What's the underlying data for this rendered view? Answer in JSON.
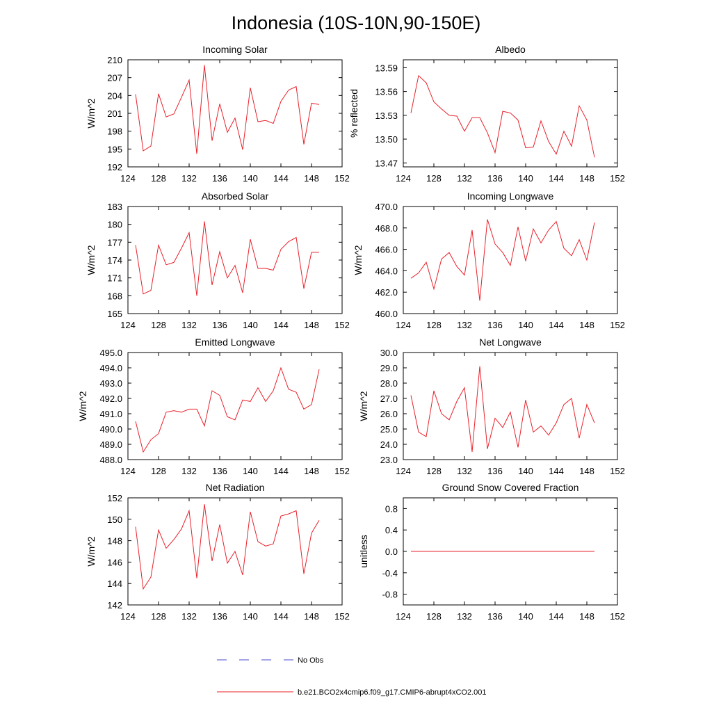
{
  "figure": {
    "title": "Indonesia (10S-10N,90-150E)",
    "legend": [
      {
        "label": "No Obs",
        "color": "#4a4ad0",
        "style": "dashed"
      },
      {
        "label": "b.e21.BCO2x4cmip6.f09_g17.CMIP6-abrupt4xCO2.001",
        "color": "#e8202a",
        "style": "solid"
      }
    ]
  },
  "chart_data": [
    {
      "type": "line",
      "title": "Incoming Solar",
      "xlabel": "",
      "ylabel": "W/m^2",
      "xlim": [
        124,
        152
      ],
      "ylim": [
        192,
        210
      ],
      "xticks": [
        124,
        128,
        132,
        136,
        140,
        144,
        148,
        152
      ],
      "xtick_labels": [
        "124",
        "128",
        "132",
        "136",
        "140",
        "144",
        "148",
        "152"
      ],
      "yticks": [
        192,
        195,
        198,
        201,
        204,
        207,
        210
      ],
      "ytick_labels": [
        "192",
        "195",
        "198",
        "201",
        "204",
        "207",
        "210"
      ],
      "series": [
        {
          "name": "b.e21.BCO2x4cmip6.f09_g17.CMIP6-abrupt4xCO2.001",
          "color": "#e8202a",
          "x": [
            125,
            126,
            127,
            128,
            129,
            130,
            131,
            132,
            133,
            134,
            135,
            136,
            137,
            138,
            139,
            140,
            141,
            142,
            143,
            144,
            145,
            146,
            147,
            148,
            149
          ],
          "y": [
            204.2,
            194.7,
            195.5,
            204.3,
            200.4,
            200.9,
            203.7,
            206.6,
            194.2,
            209.1,
            196.4,
            202.6,
            197.8,
            200.2,
            194.9,
            205.3,
            199.6,
            199.8,
            199.3,
            203.0,
            204.9,
            205.5,
            195.8,
            202.7,
            202.5
          ]
        }
      ]
    },
    {
      "type": "line",
      "title": "Albedo",
      "xlabel": "",
      "ylabel": "% reflected",
      "xlim": [
        124,
        152
      ],
      "ylim": [
        13.465,
        13.6
      ],
      "xticks": [
        124,
        128,
        132,
        136,
        140,
        144,
        148,
        152
      ],
      "xtick_labels": [
        "124",
        "128",
        "132",
        "136",
        "140",
        "144",
        "148",
        "152"
      ],
      "yticks": [
        13.47,
        13.5,
        13.53,
        13.56,
        13.59
      ],
      "ytick_labels": [
        "13.47",
        "13.50",
        "13.53",
        "13.56",
        "13.59"
      ],
      "series": [
        {
          "name": "b.e21.BCO2x4cmip6.f09_g17.CMIP6-abrupt4xCO2.001",
          "color": "#e8202a",
          "x": [
            125,
            126,
            127,
            128,
            129,
            130,
            131,
            132,
            133,
            134,
            135,
            136,
            137,
            138,
            139,
            140,
            141,
            142,
            143,
            144,
            145,
            146,
            147,
            148,
            149
          ],
          "y": [
            13.533,
            13.58,
            13.571,
            13.547,
            13.538,
            13.53,
            13.529,
            13.51,
            13.527,
            13.527,
            13.508,
            13.483,
            13.535,
            13.533,
            13.524,
            13.489,
            13.49,
            13.523,
            13.497,
            13.481,
            13.51,
            13.491,
            13.542,
            13.524,
            13.477
          ]
        }
      ]
    },
    {
      "type": "line",
      "title": "Absorbed Solar",
      "xlabel": "",
      "ylabel": "W/m^2",
      "xlim": [
        124,
        152
      ],
      "ylim": [
        165,
        183
      ],
      "xticks": [
        124,
        128,
        132,
        136,
        140,
        144,
        148,
        152
      ],
      "xtick_labels": [
        "124",
        "128",
        "132",
        "136",
        "140",
        "144",
        "148",
        "152"
      ],
      "yticks": [
        165,
        168,
        171,
        174,
        177,
        180,
        183
      ],
      "ytick_labels": [
        "165",
        "168",
        "171",
        "174",
        "177",
        "180",
        "183"
      ],
      "series": [
        {
          "name": "b.e21.BCO2x4cmip6.f09_g17.CMIP6-abrupt4xCO2.001",
          "color": "#e8202a",
          "x": [
            125,
            126,
            127,
            128,
            129,
            130,
            131,
            132,
            133,
            134,
            135,
            136,
            137,
            138,
            139,
            140,
            141,
            142,
            143,
            144,
            145,
            146,
            147,
            148,
            149
          ],
          "y": [
            176.5,
            168.3,
            168.9,
            176.5,
            173.2,
            173.6,
            176.0,
            178.6,
            168.0,
            180.5,
            169.8,
            175.4,
            171.0,
            173.1,
            168.5,
            177.5,
            172.6,
            172.6,
            172.3,
            175.8,
            177.1,
            177.8,
            169.2,
            175.3,
            175.3
          ]
        }
      ]
    },
    {
      "type": "line",
      "title": "Incoming Longwave",
      "xlabel": "",
      "ylabel": "W/m^2",
      "xlim": [
        124,
        152
      ],
      "ylim": [
        460,
        470
      ],
      "xticks": [
        124,
        128,
        132,
        136,
        140,
        144,
        148,
        152
      ],
      "xtick_labels": [
        "124",
        "128",
        "132",
        "136",
        "140",
        "144",
        "148",
        "152"
      ],
      "yticks": [
        460,
        462,
        464,
        466,
        468,
        470
      ],
      "ytick_labels": [
        "460.0",
        "462.0",
        "464.0",
        "466.0",
        "468.0",
        "470.0"
      ],
      "series": [
        {
          "name": "b.e21.BCO2x4cmip6.f09_g17.CMIP6-abrupt4xCO2.001",
          "color": "#e8202a",
          "x": [
            125,
            126,
            127,
            128,
            129,
            130,
            131,
            132,
            133,
            134,
            135,
            136,
            137,
            138,
            139,
            140,
            141,
            142,
            143,
            144,
            145,
            146,
            147,
            148,
            149
          ],
          "y": [
            463.3,
            463.8,
            464.8,
            462.3,
            465.1,
            465.7,
            464.4,
            463.6,
            467.8,
            461.2,
            468.8,
            466.5,
            465.7,
            464.5,
            468.1,
            464.9,
            467.9,
            466.6,
            467.8,
            468.6,
            466.1,
            465.4,
            466.9,
            465.0,
            468.5
          ]
        }
      ]
    },
    {
      "type": "line",
      "title": "Emitted Longwave",
      "xlabel": "",
      "ylabel": "W/m^2",
      "xlim": [
        124,
        152
      ],
      "ylim": [
        488,
        495
      ],
      "xticks": [
        124,
        128,
        132,
        136,
        140,
        144,
        148,
        152
      ],
      "xtick_labels": [
        "124",
        "128",
        "132",
        "136",
        "140",
        "144",
        "148",
        "152"
      ],
      "yticks": [
        488,
        489,
        490,
        491,
        492,
        493,
        494,
        495
      ],
      "ytick_labels": [
        "488.0",
        "489.0",
        "490.0",
        "491.0",
        "492.0",
        "493.0",
        "494.0",
        "495.0"
      ],
      "series": [
        {
          "name": "b.e21.BCO2x4cmip6.f09_g17.CMIP6-abrupt4xCO2.001",
          "color": "#e8202a",
          "x": [
            125,
            126,
            127,
            128,
            129,
            130,
            131,
            132,
            133,
            134,
            135,
            136,
            137,
            138,
            139,
            140,
            141,
            142,
            143,
            144,
            145,
            146,
            147,
            148,
            149
          ],
          "y": [
            490.5,
            488.5,
            489.3,
            489.7,
            491.1,
            491.2,
            491.1,
            491.3,
            491.3,
            490.2,
            492.5,
            492.2,
            490.8,
            490.6,
            491.9,
            491.8,
            492.7,
            491.8,
            492.5,
            494.0,
            492.6,
            492.4,
            491.3,
            491.6,
            493.9
          ]
        }
      ]
    },
    {
      "type": "line",
      "title": "Net Longwave",
      "xlabel": "",
      "ylabel": "W/m^2",
      "xlim": [
        124,
        152
      ],
      "ylim": [
        23,
        30
      ],
      "xticks": [
        124,
        128,
        132,
        136,
        140,
        144,
        148,
        152
      ],
      "xtick_labels": [
        "124",
        "128",
        "132",
        "136",
        "140",
        "144",
        "148",
        "152"
      ],
      "yticks": [
        23,
        24,
        25,
        26,
        27,
        28,
        29,
        30
      ],
      "ytick_labels": [
        "23.0",
        "24.0",
        "25.0",
        "26.0",
        "27.0",
        "28.0",
        "29.0",
        "30.0"
      ],
      "series": [
        {
          "name": "b.e21.BCO2x4cmip6.f09_g17.CMIP6-abrupt4xCO2.001",
          "color": "#e8202a",
          "x": [
            125,
            126,
            127,
            128,
            129,
            130,
            131,
            132,
            133,
            134,
            135,
            136,
            137,
            138,
            139,
            140,
            141,
            142,
            143,
            144,
            145,
            146,
            147,
            148,
            149
          ],
          "y": [
            27.2,
            24.8,
            24.5,
            27.5,
            26.0,
            25.6,
            26.8,
            27.7,
            23.5,
            29.1,
            23.7,
            25.7,
            25.1,
            26.1,
            23.8,
            26.9,
            24.8,
            25.2,
            24.6,
            25.4,
            26.6,
            27.0,
            24.4,
            26.6,
            25.4
          ]
        }
      ]
    },
    {
      "type": "line",
      "title": "Net Radiation",
      "xlabel": "",
      "ylabel": "W/m^2",
      "xlim": [
        124,
        152
      ],
      "ylim": [
        142,
        152
      ],
      "xticks": [
        124,
        128,
        132,
        136,
        140,
        144,
        148,
        152
      ],
      "xtick_labels": [
        "124",
        "128",
        "132",
        "136",
        "140",
        "144",
        "148",
        "152"
      ],
      "yticks": [
        142,
        144,
        146,
        148,
        150,
        152
      ],
      "ytick_labels": [
        "142",
        "144",
        "146",
        "148",
        "150",
        "152"
      ],
      "series": [
        {
          "name": "b.e21.BCO2x4cmip6.f09_g17.CMIP6-abrupt4xCO2.001",
          "color": "#e8202a",
          "x": [
            125,
            126,
            127,
            128,
            129,
            130,
            131,
            132,
            133,
            134,
            135,
            136,
            137,
            138,
            139,
            140,
            141,
            142,
            143,
            144,
            145,
            146,
            147,
            148,
            149
          ],
          "y": [
            149.3,
            143.5,
            144.6,
            149.0,
            147.3,
            148.1,
            149.1,
            150.8,
            144.5,
            151.4,
            146.1,
            149.5,
            145.9,
            147.0,
            144.8,
            150.7,
            147.9,
            147.5,
            147.7,
            150.3,
            150.5,
            150.8,
            144.9,
            148.7,
            149.9
          ]
        }
      ]
    },
    {
      "type": "line",
      "title": "Ground Snow Covered Fraction",
      "xlabel": "",
      "ylabel": "unitless",
      "xlim": [
        124,
        152
      ],
      "ylim": [
        -1.0,
        1.0
      ],
      "xticks": [
        124,
        128,
        132,
        136,
        140,
        144,
        148,
        152
      ],
      "xtick_labels": [
        "124",
        "128",
        "132",
        "136",
        "140",
        "144",
        "148",
        "152"
      ],
      "yticks": [
        -0.8,
        -0.4,
        0.0,
        0.4,
        0.8
      ],
      "ytick_labels": [
        "-0.8",
        "-0.4",
        "0.0",
        "0.4",
        "0.8"
      ],
      "series": [
        {
          "name": "b.e21.BCO2x4cmip6.f09_g17.CMIP6-abrupt4xCO2.001",
          "color": "#e8202a",
          "x": [
            125,
            149
          ],
          "y": [
            0.0,
            0.0
          ]
        }
      ]
    }
  ]
}
